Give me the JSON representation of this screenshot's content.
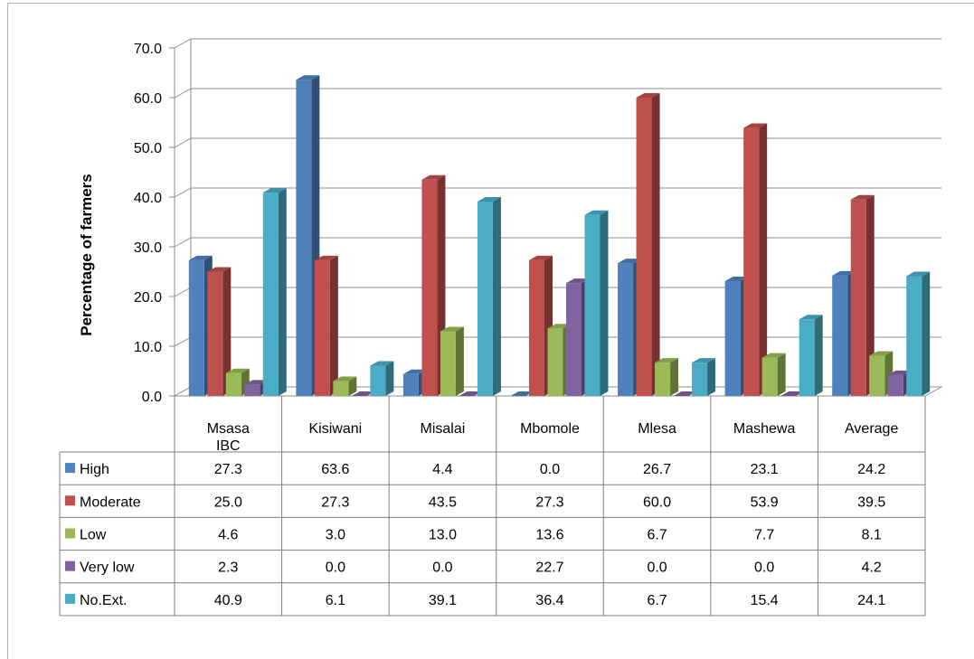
{
  "chart_data": {
    "type": "bar",
    "ylabel": "Percentage of farmers",
    "ylim": [
      0,
      70
    ],
    "yticks": [
      "0.0",
      "10.0",
      "20.0",
      "30.0",
      "40.0",
      "50.0",
      "60.0",
      "70.0"
    ],
    "grid": true,
    "categories": [
      "Msasa IBC",
      "Kisiwani",
      "Misalai",
      "Mbomole",
      "Mlesa",
      "Mashewa",
      "Average"
    ],
    "series": [
      {
        "name": "High",
        "color": "#4f81bd",
        "values": [
          27.3,
          63.6,
          4.4,
          0.0,
          26.7,
          23.1,
          24.2
        ],
        "labels": [
          "27.3",
          "63.6",
          "4.4",
          "0.0",
          "26.7",
          "23.1",
          "24.2"
        ]
      },
      {
        "name": "Moderate",
        "color": "#c0504d",
        "values": [
          25.0,
          27.3,
          43.5,
          27.3,
          60.0,
          53.9,
          39.5
        ],
        "labels": [
          "25.0",
          "27.3",
          "43.5",
          "27.3",
          "60.0",
          "53.9",
          "39.5"
        ]
      },
      {
        "name": "Low",
        "color": "#9bbb59",
        "values": [
          4.6,
          3.0,
          13.0,
          13.6,
          6.7,
          7.7,
          8.1
        ],
        "labels": [
          "4.6",
          "3.0",
          "13.0",
          "13.6",
          "6.7",
          "7.7",
          "8.1"
        ]
      },
      {
        "name": "Very low",
        "color": "#8064a2",
        "values": [
          2.3,
          0.0,
          0.0,
          22.7,
          0.0,
          0.0,
          4.2
        ],
        "labels": [
          "2.3",
          "0.0",
          "0.0",
          "22.7",
          "0.0",
          "0.0",
          "4.2"
        ]
      },
      {
        "name": "No.Ext.",
        "color": "#4bacc6",
        "values": [
          40.9,
          6.1,
          39.1,
          36.4,
          6.7,
          15.4,
          24.1
        ],
        "labels": [
          "40.9",
          "6.1",
          "39.1",
          "36.4",
          "6.7",
          "15.4",
          "24.1"
        ]
      }
    ],
    "legend": "data-table-left"
  }
}
